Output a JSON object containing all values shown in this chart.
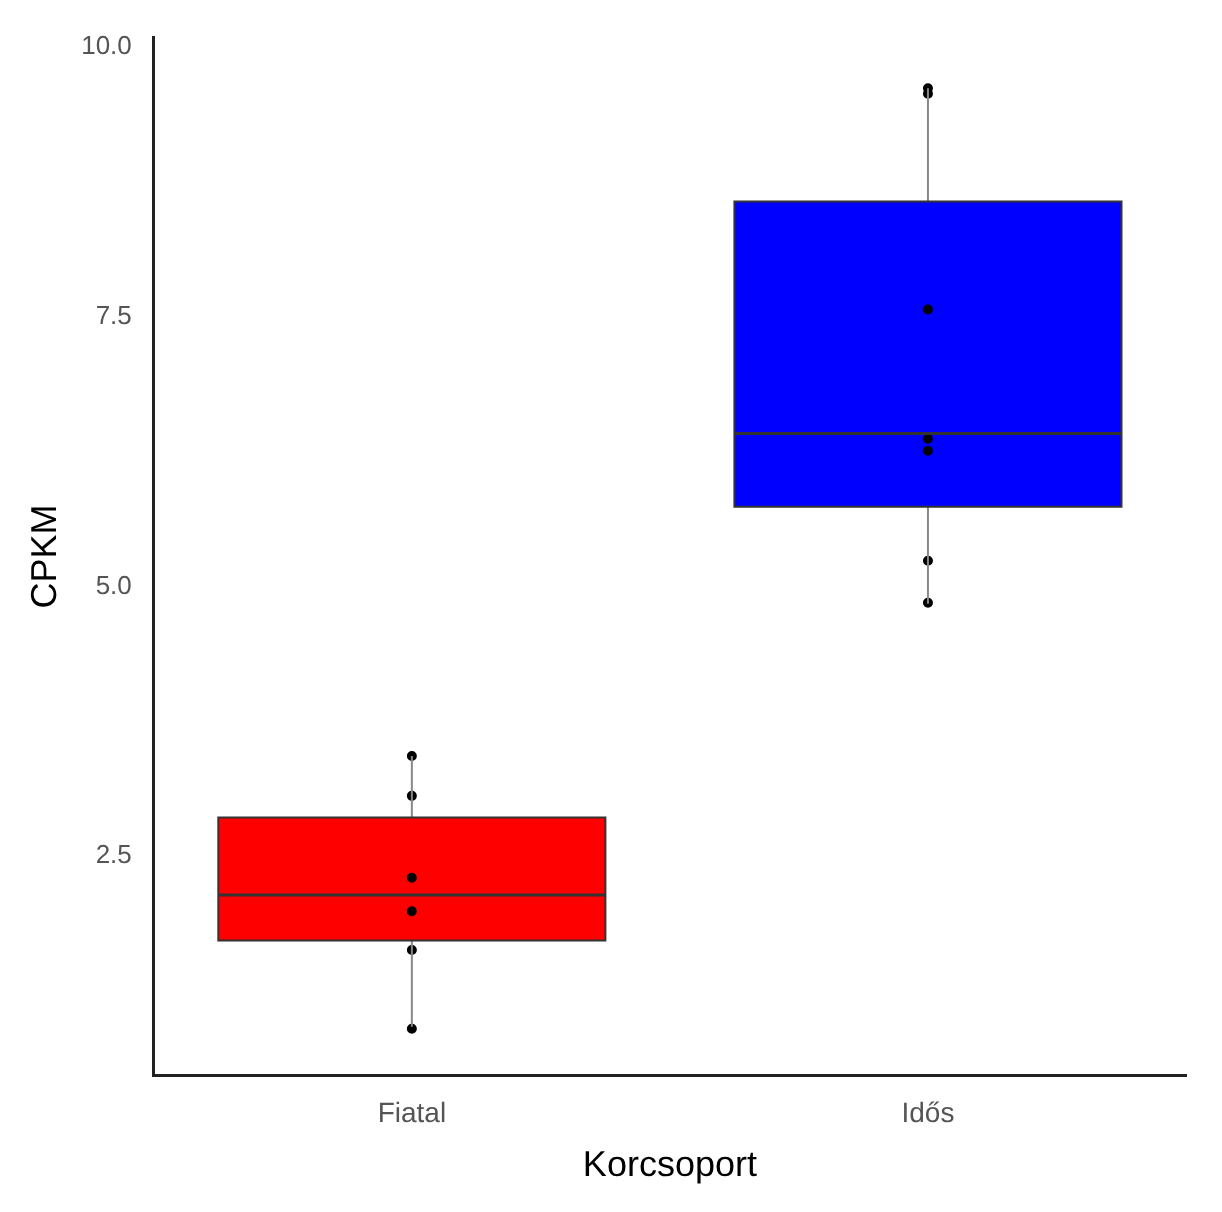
{
  "chart_data": {
    "type": "box",
    "xlabel": "Korcsoport",
    "ylabel": "CPKM",
    "categories": [
      "Fiatal",
      "Idős"
    ],
    "colors": [
      "#ff0000",
      "#0000ff"
    ],
    "boxes": [
      {
        "low": 0.92,
        "q1": 1.72,
        "median": 2.14,
        "q3": 2.86,
        "high": 3.43
      },
      {
        "low": 4.84,
        "q1": 5.74,
        "median": 6.42,
        "q3": 8.57,
        "high": 9.62
      }
    ],
    "ylim": [
      0.47,
      10.09
    ],
    "yticks": [
      {
        "value": 2.5,
        "label": "2.5"
      },
      {
        "value": 5,
        "label": "5.0"
      },
      {
        "value": 7.5,
        "label": "7.5"
      },
      {
        "value": 10,
        "label": "10.0"
      }
    ],
    "series": [
      {
        "type": "scatter",
        "color": "#000000",
        "x": [
          "Fiatal",
          "Fiatal",
          "Fiatal",
          "Fiatal",
          "Fiatal",
          "Fiatal",
          "Idős",
          "Idős",
          "Idős",
          "Idős",
          "Idős",
          "Idős",
          "Idős"
        ],
        "values": [
          3.43,
          3.06,
          2.3,
          1.99,
          1.63,
          0.9,
          9.62,
          9.57,
          7.57,
          6.37,
          6.26,
          5.24,
          4.85
        ]
      }
    ]
  }
}
